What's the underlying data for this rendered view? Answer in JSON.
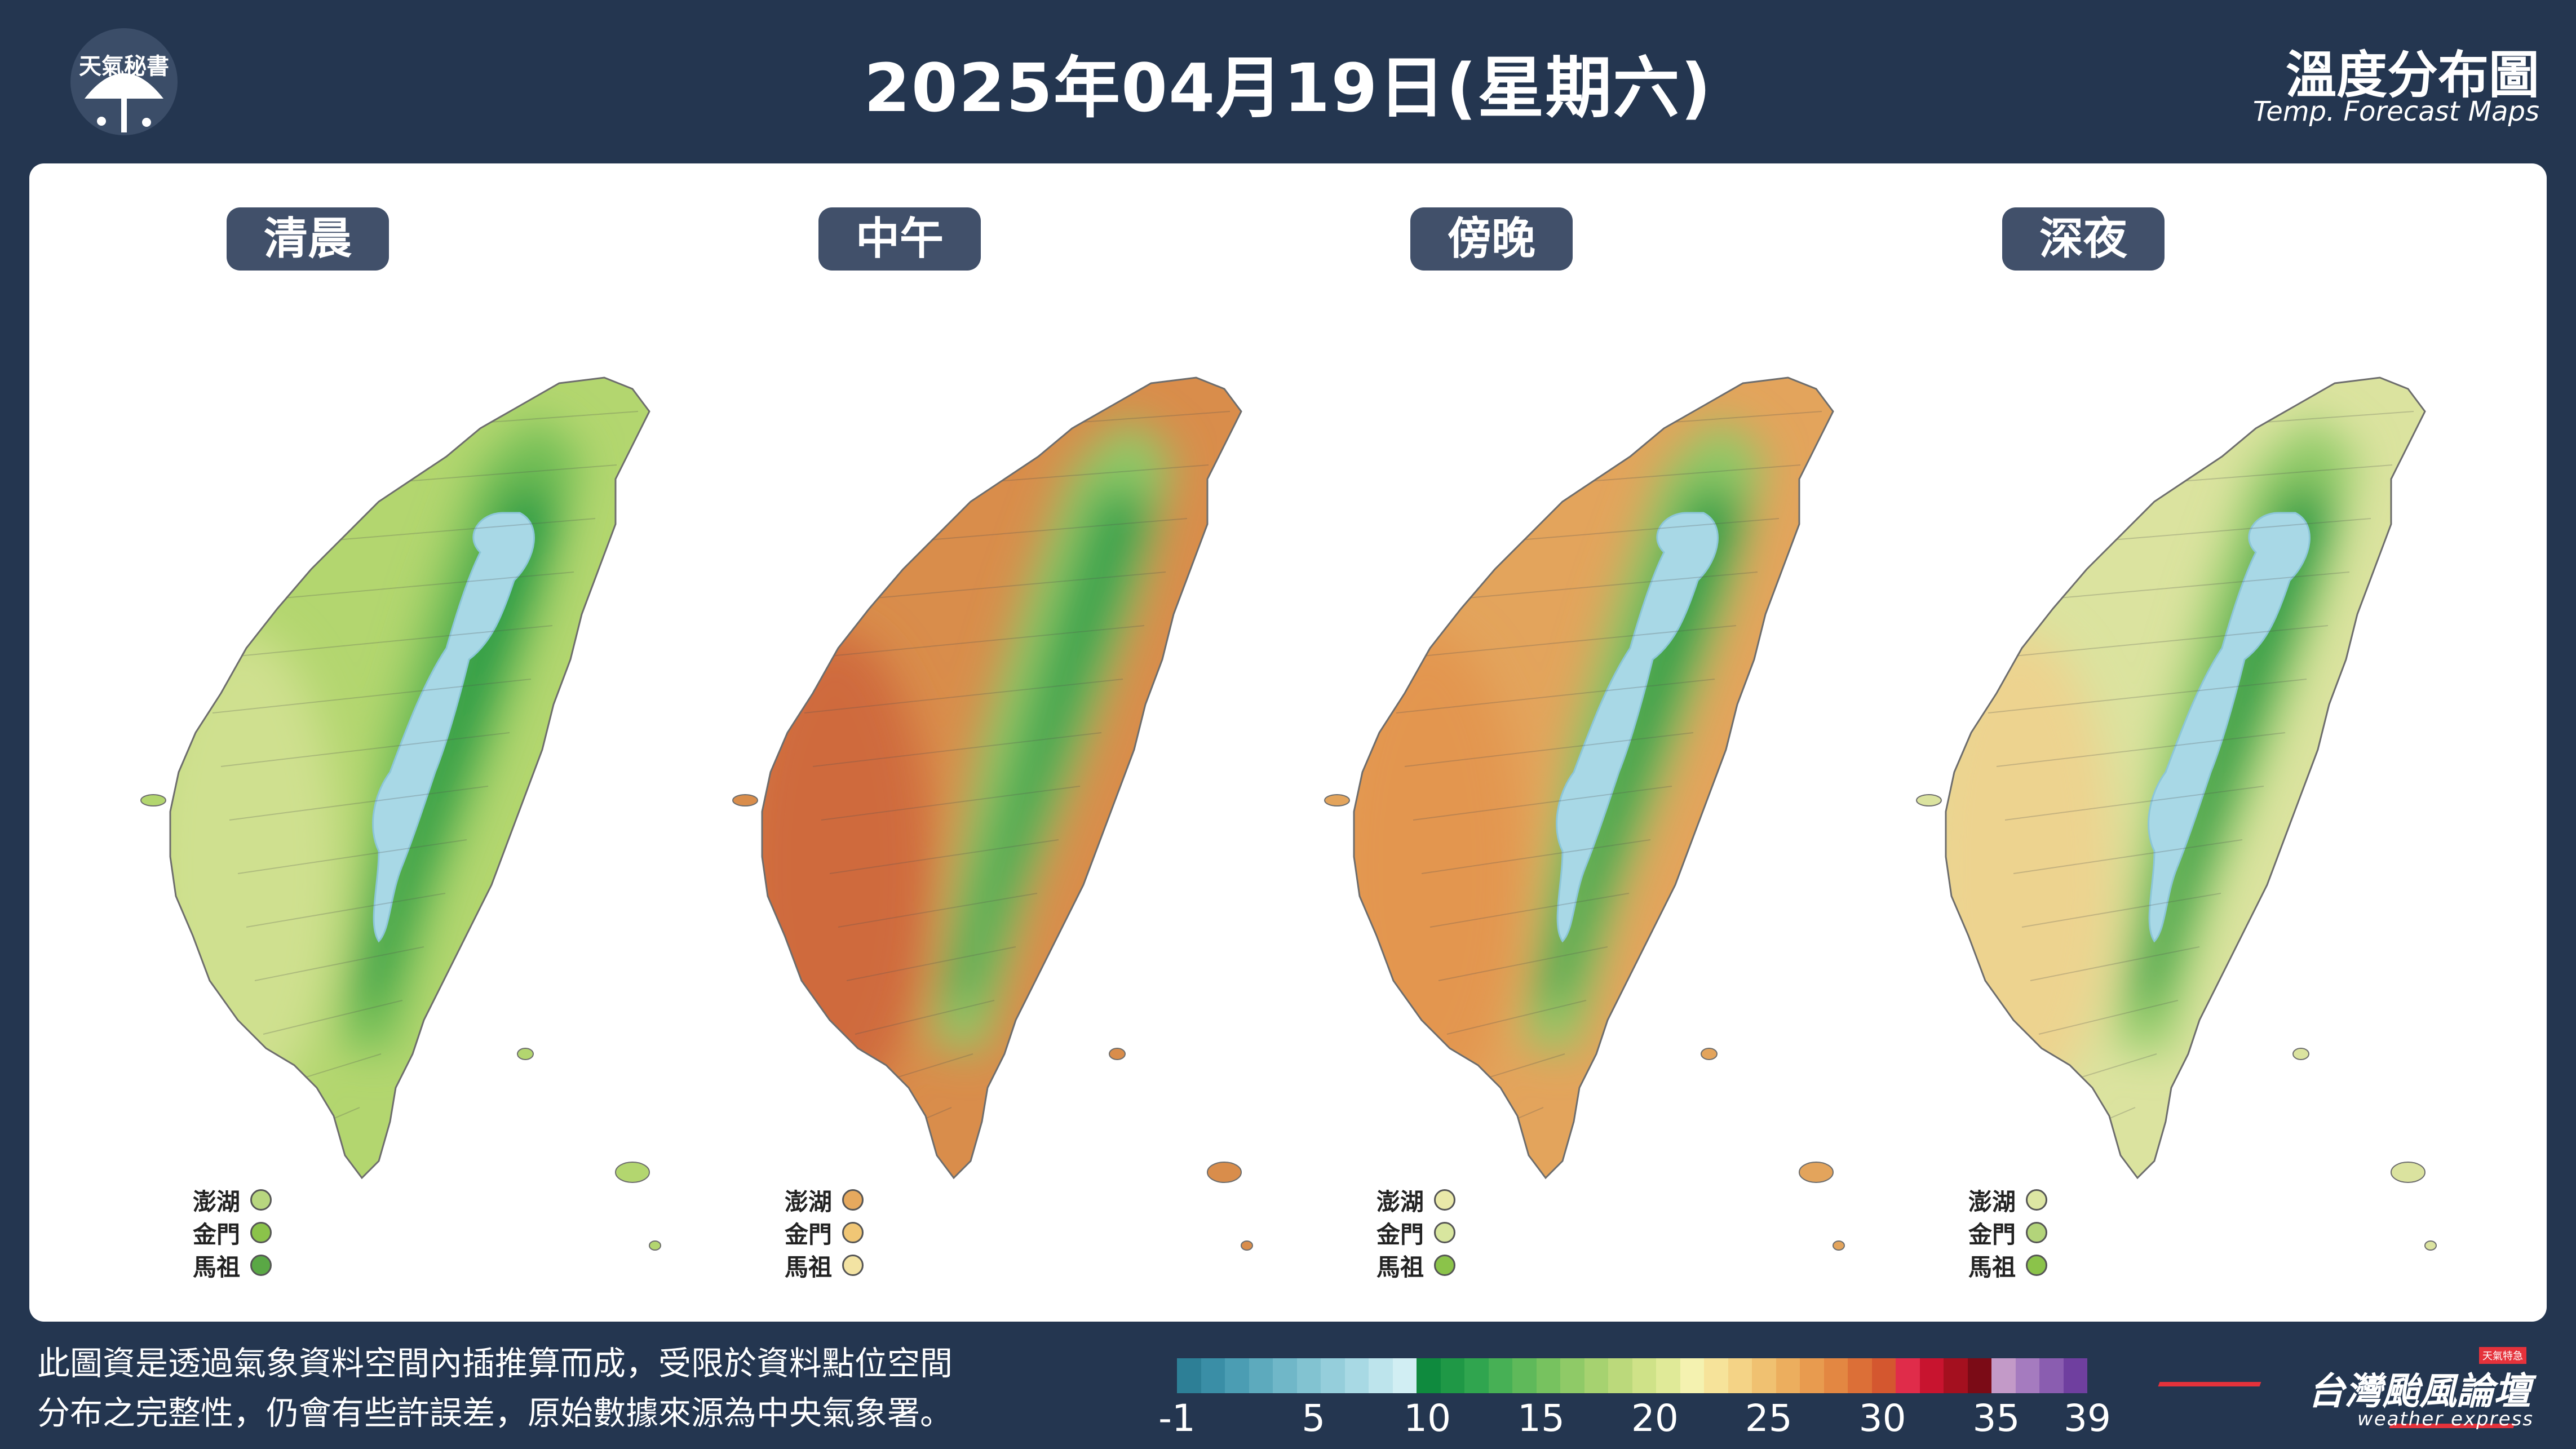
{
  "header": {
    "logo_text": "天氣秘書",
    "title": "2025年04月19日(星期六)",
    "brand_title": "溫度分布圖",
    "brand_subtitle": "Temp. Forecast Maps"
  },
  "panels": [
    {
      "label": "清晨",
      "theme": "cool",
      "islands": [
        {
          "name": "澎湖",
          "color": "#b8d67f"
        },
        {
          "name": "金門",
          "color": "#8bc34a"
        },
        {
          "name": "馬祖",
          "color": "#5aa845"
        }
      ]
    },
    {
      "label": "中午",
      "theme": "hot",
      "islands": [
        {
          "name": "澎湖",
          "color": "#e6a95e"
        },
        {
          "name": "金門",
          "color": "#f0c675"
        },
        {
          "name": "馬祖",
          "color": "#f3e3a3"
        }
      ]
    },
    {
      "label": "傍晚",
      "theme": "warm",
      "islands": [
        {
          "name": "澎湖",
          "color": "#eae9a9"
        },
        {
          "name": "金門",
          "color": "#d8e69f"
        },
        {
          "name": "馬祖",
          "color": "#8bc34a"
        }
      ]
    },
    {
      "label": "深夜",
      "theme": "night",
      "islands": [
        {
          "name": "澎湖",
          "color": "#dde6a3"
        },
        {
          "name": "金門",
          "color": "#b3d47a"
        },
        {
          "name": "馬祖",
          "color": "#8bc34a"
        }
      ]
    }
  ],
  "footer": {
    "note_line1": "此圖資是透過氣象資料空間內插推算而成，受限於資料點位空間",
    "note_line2": "分布之完整性，仍會有些許誤差，原始數據來源為中央氣象署。",
    "publisher_name": "台灣颱風論壇",
    "publisher_sub": "weather express",
    "publisher_badge": "天氣特急"
  },
  "colorbar": {
    "ticks": [
      "-1",
      "5",
      "10",
      "15",
      "20",
      "25",
      "30",
      "35",
      "39"
    ],
    "tick_values": [
      -1,
      5,
      10,
      15,
      20,
      25,
      30,
      35,
      39
    ],
    "range": [
      -1,
      39
    ],
    "colors": [
      "#2d7f96",
      "#3a8ea6",
      "#4b9db3",
      "#5daabd",
      "#70b7c8",
      "#82c3d1",
      "#95cedb",
      "#a8d9e4",
      "#bde4ec",
      "#d1eef3",
      "#0f8a3e",
      "#1f9846",
      "#30a54f",
      "#47b055",
      "#5fb95a",
      "#77c25f",
      "#8fca67",
      "#a6d270",
      "#bbd97b",
      "#cfe288",
      "#e0ea98",
      "#f4f2b0",
      "#f6e39a",
      "#f4d386",
      "#f0c171",
      "#ecae5e",
      "#e89b4f",
      "#e38742",
      "#dc6f37",
      "#d4572f",
      "#e02c4a",
      "#c8142f",
      "#a4101f",
      "#7b0b16",
      "#c39ac8",
      "#a57bbf",
      "#8a5db0",
      "#6f3f9f"
    ]
  }
}
